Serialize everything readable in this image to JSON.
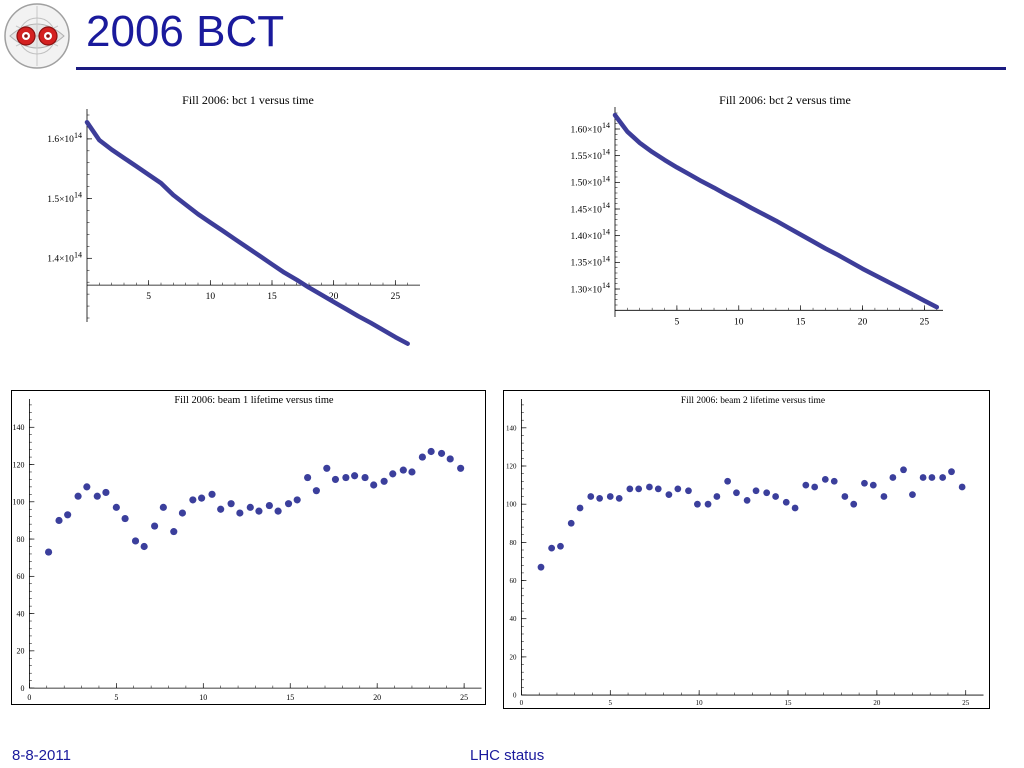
{
  "slide": {
    "title": "2006 BCT",
    "footer_left": "8-8-2011",
    "footer_center": "LHC status"
  },
  "logo": {
    "icon": "lhc-dipole-cross-section-icon",
    "accent": "#d42020"
  },
  "colors": {
    "title": "#1a1a9c",
    "rule": "#1a1a80",
    "data": "#3d3d99",
    "marker": "#3b3f9c"
  },
  "chart_data": [
    {
      "type": "line",
      "title": "Fill 2006: bct 1 versus time",
      "xlabel": "",
      "ylabel": "",
      "xlim": [
        0,
        27.0
      ],
      "ylim": [
        130000000000000.0,
        164000000000000.0
      ],
      "axis_origin": [
        0,
        135500000000000.0
      ],
      "x_ticks": [
        5,
        10,
        15,
        20,
        25
      ],
      "y_ticks": [
        {
          "v": 140000000000000.0,
          "m": "1.4",
          "e": "14"
        },
        {
          "v": 150000000000000.0,
          "m": "1.5",
          "e": "14"
        },
        {
          "v": 160000000000000.0,
          "m": "1.6",
          "e": "14"
        }
      ],
      "grid": false,
      "legend": "none",
      "series": [
        {
          "x": [
            0,
            1,
            2,
            3,
            4,
            5,
            6,
            7,
            8,
            9,
            10,
            11,
            12,
            13,
            14,
            15,
            16,
            17,
            18,
            19,
            20,
            21,
            22,
            23,
            24,
            25,
            26
          ],
          "values": [
            162800000000000.0,
            159800000000000.0,
            158200000000000.0,
            156800000000000.0,
            155400000000000.0,
            154000000000000.0,
            152600000000000.0,
            150600000000000.0,
            149000000000000.0,
            147400000000000.0,
            146000000000000.0,
            144600000000000.0,
            143200000000000.0,
            141800000000000.0,
            140400000000000.0,
            139000000000000.0,
            137600000000000.0,
            136400000000000.0,
            135100000000000.0,
            133900000000000.0,
            132700000000000.0,
            131500000000000.0,
            130300000000000.0,
            129200000000000.0,
            128000000000000.0,
            126800000000000.0,
            125700000000000.0
          ]
        }
      ]
    },
    {
      "type": "line",
      "title": "Fill 2006: bct 2 versus time",
      "xlabel": "",
      "ylabel": "",
      "xlim": [
        0,
        26.5
      ],
      "ylim": [
        125500000000000.0,
        163000000000000.0
      ],
      "axis_origin": [
        0,
        126000000000000.0
      ],
      "x_ticks": [
        5,
        10,
        15,
        20,
        25
      ],
      "y_ticks": [
        {
          "v": 130000000000000.0,
          "m": "1.30",
          "e": "14"
        },
        {
          "v": 135000000000000.0,
          "m": "1.35",
          "e": "14"
        },
        {
          "v": 140000000000000.0,
          "m": "1.40",
          "e": "14"
        },
        {
          "v": 145000000000000.0,
          "m": "1.45",
          "e": "14"
        },
        {
          "v": 150000000000000.0,
          "m": "1.50",
          "e": "14"
        },
        {
          "v": 155000000000000.0,
          "m": "1.55",
          "e": "14"
        },
        {
          "v": 160000000000000.0,
          "m": "1.60",
          "e": "14"
        }
      ],
      "grid": false,
      "legend": "none",
      "series": [
        {
          "x": [
            0,
            1,
            2,
            3,
            4,
            5,
            6,
            7,
            8,
            9,
            10,
            11,
            12,
            13,
            14,
            15,
            16,
            17,
            18,
            19,
            20,
            21,
            22,
            23,
            24,
            25,
            26
          ],
          "values": [
            162600000000000.0,
            159500000000000.0,
            157400000000000.0,
            155700000000000.0,
            154200000000000.0,
            152800000000000.0,
            151500000000000.0,
            150200000000000.0,
            149000000000000.0,
            147700000000000.0,
            146500000000000.0,
            145200000000000.0,
            144000000000000.0,
            142800000000000.0,
            141500000000000.0,
            140200000000000.0,
            138900000000000.0,
            137600000000000.0,
            136400000000000.0,
            135100000000000.0,
            133800000000000.0,
            132600000000000.0,
            131400000000000.0,
            130200000000000.0,
            129000000000000.0,
            127800000000000.0,
            126600000000000.0
          ]
        }
      ]
    },
    {
      "type": "scatter",
      "title": "Fill 2006: beam 1 lifetime versus time",
      "xlabel": "",
      "ylabel": "",
      "xlim": [
        0,
        26.0
      ],
      "ylim": [
        0,
        152
      ],
      "axis_origin": [
        0,
        0
      ],
      "x_ticks": [
        0,
        5,
        10,
        15,
        20,
        25
      ],
      "y_ticks": [
        {
          "v": 0,
          "m": "0"
        },
        {
          "v": 20,
          "m": "20"
        },
        {
          "v": 40,
          "m": "40"
        },
        {
          "v": 60,
          "m": "60"
        },
        {
          "v": 80,
          "m": "80"
        },
        {
          "v": 100,
          "m": "100"
        },
        {
          "v": 120,
          "m": "120"
        },
        {
          "v": 140,
          "m": "140"
        }
      ],
      "grid": false,
      "legend": "none",
      "series": [
        {
          "x": [
            1.1,
            1.7,
            2.2,
            2.8,
            3.3,
            3.9,
            4.4,
            5.0,
            5.5,
            6.1,
            6.6,
            7.2,
            7.7,
            8.3,
            8.8,
            9.4,
            9.9,
            10.5,
            11.0,
            11.6,
            12.1,
            12.7,
            13.2,
            13.8,
            14.3,
            14.9,
            15.4,
            16.0,
            16.5,
            17.1,
            17.6,
            18.2,
            18.7,
            19.3,
            19.8,
            20.4,
            20.9,
            21.5,
            22.0,
            22.6,
            23.1,
            23.7,
            24.2,
            24.8
          ],
          "values": [
            73,
            90,
            93,
            103,
            108,
            103,
            105,
            97,
            91,
            79,
            76,
            87,
            97,
            84,
            94,
            101,
            102,
            104,
            96,
            99,
            94,
            97,
            95,
            98,
            95,
            99,
            101,
            113,
            106,
            118,
            112,
            113,
            114,
            113,
            109,
            111,
            115,
            117,
            116,
            124,
            127,
            126,
            123,
            118
          ]
        }
      ]
    },
    {
      "type": "scatter",
      "title": "Fill 2006: beam 2 lifetime versus time",
      "xlabel": "",
      "ylabel": "",
      "xlim": [
        0,
        26.0
      ],
      "ylim": [
        0,
        152
      ],
      "axis_origin": [
        0,
        0
      ],
      "x_ticks": [
        0,
        5,
        10,
        15,
        20,
        25
      ],
      "y_ticks": [
        {
          "v": 0,
          "m": "0"
        },
        {
          "v": 20,
          "m": "20"
        },
        {
          "v": 40,
          "m": "40"
        },
        {
          "v": 60,
          "m": "60"
        },
        {
          "v": 80,
          "m": "80"
        },
        {
          "v": 100,
          "m": "100"
        },
        {
          "v": 120,
          "m": "120"
        },
        {
          "v": 140,
          "m": "140"
        }
      ],
      "grid": false,
      "legend": "none",
      "series": [
        {
          "x": [
            1.1,
            1.7,
            2.2,
            2.8,
            3.3,
            3.9,
            4.4,
            5.0,
            5.5,
            6.1,
            6.6,
            7.2,
            7.7,
            8.3,
            8.8,
            9.4,
            9.9,
            10.5,
            11.0,
            11.6,
            12.1,
            12.7,
            13.2,
            13.8,
            14.3,
            14.9,
            15.4,
            16.0,
            16.5,
            17.1,
            17.6,
            18.2,
            18.7,
            19.3,
            19.8,
            20.4,
            20.9,
            21.5,
            22.0,
            22.6,
            23.1,
            23.7,
            24.2,
            24.8
          ],
          "values": [
            67,
            77,
            78,
            90,
            98,
            104,
            103,
            104,
            103,
            108,
            108,
            109,
            108,
            105,
            108,
            107,
            100,
            100,
            104,
            112,
            106,
            102,
            107,
            106,
            104,
            101,
            98,
            110,
            109,
            113,
            112,
            104,
            100,
            111,
            110,
            104,
            114,
            118,
            105,
            114,
            114,
            114,
            117,
            109
          ]
        }
      ]
    }
  ]
}
